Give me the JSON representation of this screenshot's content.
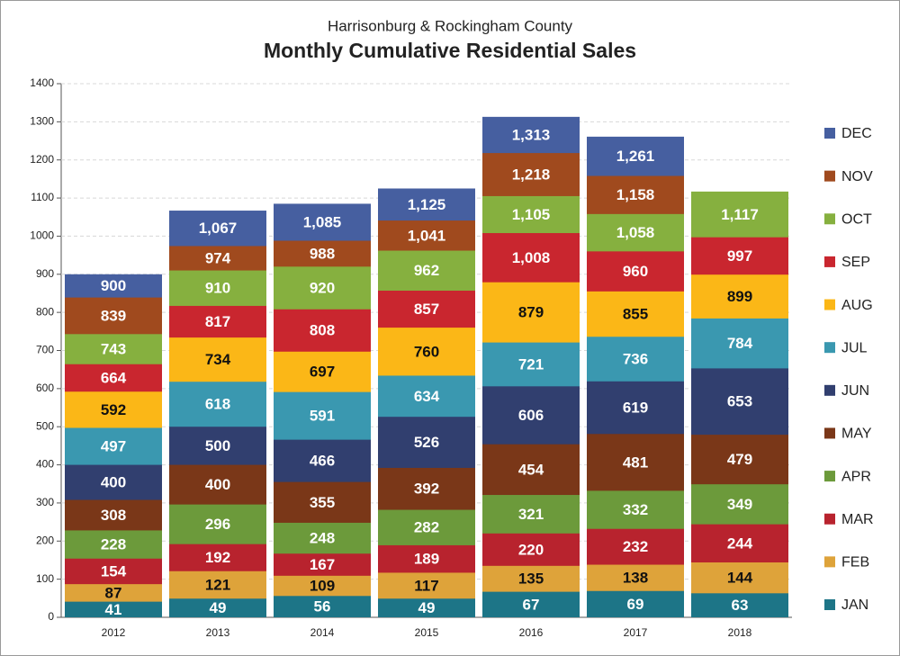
{
  "chart_data": {
    "type": "cumulative_bar",
    "subtitle": "Harrisonburg & Rockingham County",
    "title": "Monthly Cumulative Residential Sales",
    "categories": [
      "2012",
      "2013",
      "2014",
      "2015",
      "2016",
      "2017",
      "2018"
    ],
    "ylim": [
      0,
      1400
    ],
    "yticks": [
      0,
      100,
      200,
      300,
      400,
      500,
      600,
      700,
      800,
      900,
      1000,
      1100,
      1200,
      1300,
      1400
    ],
    "grid": true,
    "legend": "right",
    "series": [
      {
        "name": "JAN",
        "color": "#1d7587",
        "values": [
          41,
          49,
          56,
          49,
          67,
          69,
          63
        ],
        "value_labels": [
          "41",
          "49",
          "56",
          "49",
          "67",
          "69",
          "63"
        ]
      },
      {
        "name": "FEB",
        "color": "#dea33a",
        "values": [
          87,
          121,
          109,
          117,
          135,
          138,
          144
        ],
        "value_labels": [
          "87",
          "121",
          "109",
          "117",
          "135",
          "138",
          "144"
        ]
      },
      {
        "name": "MAR",
        "color": "#b8232e",
        "values": [
          154,
          192,
          167,
          189,
          220,
          232,
          244
        ],
        "value_labels": [
          "154",
          "192",
          "167",
          "189",
          "220",
          "232",
          "244"
        ]
      },
      {
        "name": "APR",
        "color": "#6c9a3b",
        "values": [
          228,
          296,
          248,
          282,
          321,
          332,
          349
        ],
        "value_labels": [
          "228",
          "296",
          "248",
          "282",
          "321",
          "332",
          "349"
        ]
      },
      {
        "name": "MAY",
        "color": "#7a3718",
        "values": [
          308,
          400,
          355,
          392,
          454,
          481,
          479
        ],
        "value_labels": [
          "308",
          "400",
          "355",
          "392",
          "454",
          "481",
          "479"
        ]
      },
      {
        "name": "JUN",
        "color": "#313f6f",
        "values": [
          400,
          500,
          466,
          526,
          606,
          619,
          653
        ],
        "value_labels": [
          "400",
          "500",
          "466",
          "526",
          "606",
          "619",
          "653"
        ]
      },
      {
        "name": "JUL",
        "color": "#3a98b0",
        "values": [
          497,
          618,
          591,
          634,
          721,
          736,
          784
        ],
        "value_labels": [
          "497",
          "618",
          "591",
          "634",
          "721",
          "736",
          "784"
        ]
      },
      {
        "name": "AUG",
        "color": "#fbb717",
        "values": [
          592,
          734,
          697,
          760,
          879,
          855,
          899
        ],
        "value_labels": [
          "592",
          "734",
          "697",
          "760",
          "879",
          "855",
          "899"
        ]
      },
      {
        "name": "SEP",
        "color": "#c9262f",
        "values": [
          664,
          817,
          808,
          857,
          1008,
          960,
          997
        ],
        "value_labels": [
          "664",
          "817",
          "808",
          "857",
          "1,008",
          "960",
          "997"
        ]
      },
      {
        "name": "OCT",
        "color": "#86b03f",
        "values": [
          743,
          910,
          920,
          962,
          1105,
          1058,
          1117
        ],
        "value_labels": [
          "743",
          "910",
          "920",
          "962",
          "1,105",
          "1,058",
          "1,117"
        ]
      },
      {
        "name": "NOV",
        "color": "#a04a1e",
        "values": [
          839,
          974,
          988,
          1041,
          1218,
          1158,
          null
        ],
        "value_labels": [
          "839",
          "974",
          "988",
          "1,041",
          "1,218",
          "1,158",
          null
        ]
      },
      {
        "name": "DEC",
        "color": "#465fa0",
        "values": [
          900,
          1067,
          1085,
          1125,
          1313,
          1261,
          null
        ],
        "value_labels": [
          "900",
          "1,067",
          "1,085",
          "1,125",
          "1,313",
          "1,261",
          null
        ]
      }
    ]
  }
}
